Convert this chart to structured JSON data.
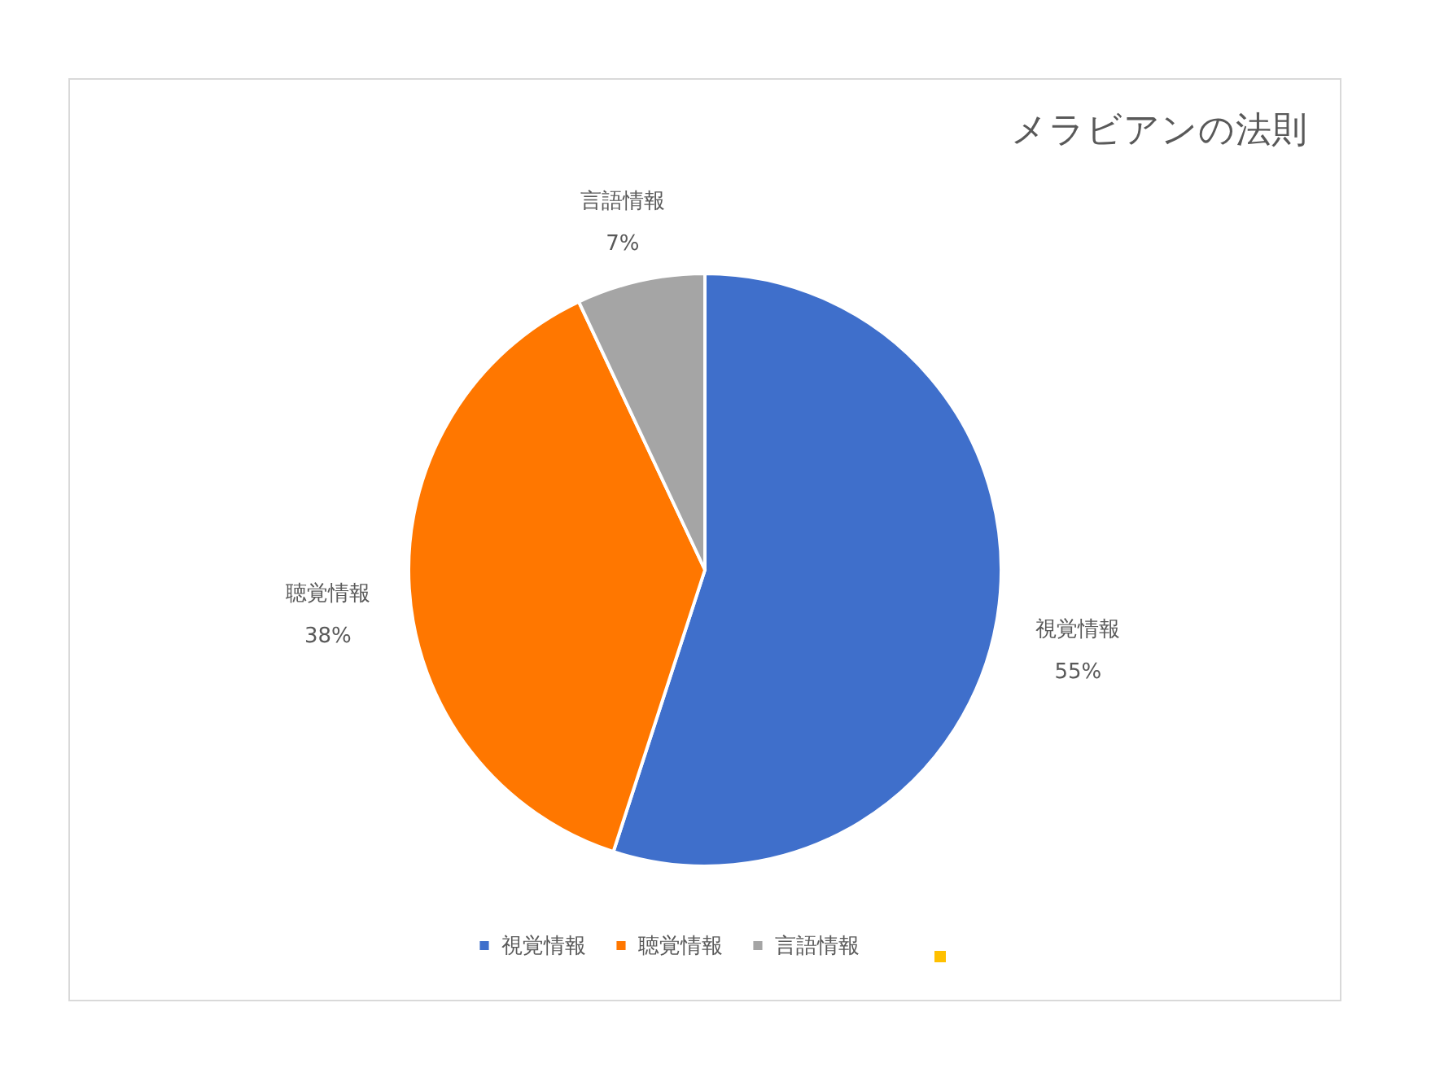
{
  "chart_data": {
    "type": "pie",
    "title": "メラビアンの法則",
    "categories": [
      "視覚情報",
      "聴覚情報",
      "言語情報"
    ],
    "values": [
      55,
      38,
      7
    ],
    "colors": [
      "#3f6fcb",
      "#ff7700",
      "#a5a5a5"
    ],
    "value_labels": [
      "55%",
      "38%",
      "7%"
    ],
    "legend": "bottom"
  }
}
